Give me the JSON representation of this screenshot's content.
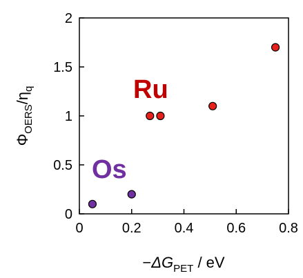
{
  "chart_data": {
    "type": "scatter",
    "title": "",
    "xlim": [
      0,
      0.8
    ],
    "ylim": [
      0,
      2
    ],
    "xticks": [
      "0",
      "0.2",
      "0.4",
      "0.6",
      "0.8"
    ],
    "yticks": [
      "0",
      "0.5",
      "1",
      "1.5",
      "2"
    ],
    "xlabel": {
      "prefix": "−",
      "main": "ΔG",
      "sub": "PET",
      "suffix": " / eV"
    },
    "ylabel": {
      "main": "Φ",
      "sub": "OERS",
      "mid": "/η",
      "sub2": "q"
    },
    "grid": false,
    "series": [
      {
        "name": "Ru",
        "color": "#e8201c",
        "label_color": "#c00000",
        "points": [
          [
            0.27,
            1.0
          ],
          [
            0.31,
            1.0
          ],
          [
            0.51,
            1.1
          ],
          [
            0.75,
            1.7
          ]
        ]
      },
      {
        "name": "Os",
        "color": "#7030a0",
        "label_color": "#7030a0",
        "points": [
          [
            0.05,
            0.1
          ],
          [
            0.2,
            0.2
          ]
        ]
      }
    ]
  }
}
